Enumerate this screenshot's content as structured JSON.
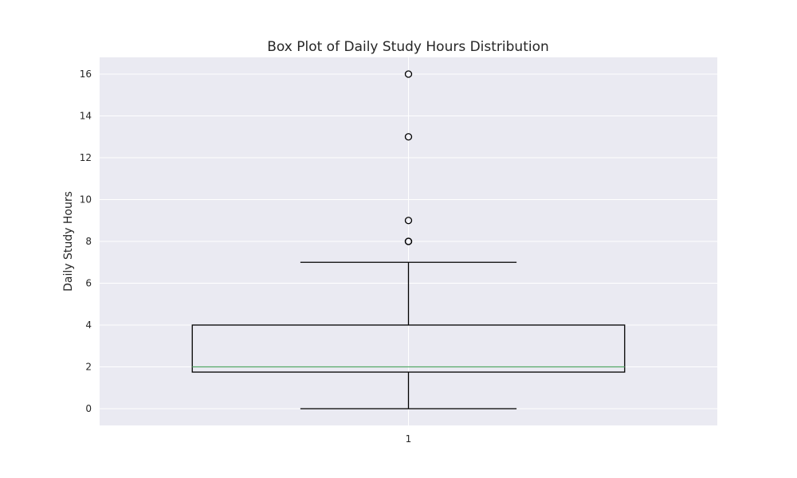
{
  "chart_data": {
    "type": "box",
    "title": "Box Plot of Daily Study Hours Distribution",
    "xlabel": "",
    "ylabel": "Daily Study Hours",
    "categories": [
      "1"
    ],
    "yticks": [
      "0",
      "2",
      "4",
      "6",
      "8",
      "10",
      "12",
      "14",
      "16"
    ],
    "ylim": [
      -0.8,
      16.8
    ],
    "grid": true,
    "boxes": [
      {
        "category": "1",
        "whisker_low": 0,
        "q1": 1.75,
        "median": 2,
        "q3": 4,
        "whisker_high": 7,
        "outliers": [
          8,
          8,
          9,
          13,
          16
        ]
      }
    ],
    "colors": {
      "plot_background": "#eaeaf2",
      "grid": "#ffffff",
      "box": "#000000",
      "median": "#55a868"
    }
  }
}
